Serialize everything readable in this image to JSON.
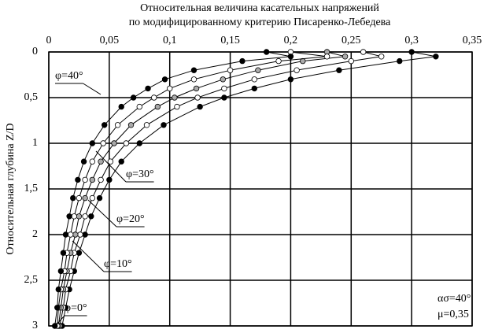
{
  "chart_data": {
    "type": "line",
    "title": [
      "Относительная величина касательных напряжений",
      "по модифицированному критерию Писаренко-Лебедева"
    ],
    "y_label": "Относительная глубина Z/D",
    "y": [
      0,
      0.05,
      0.1,
      0.2,
      0.3,
      0.4,
      0.5,
      0.6,
      0.8,
      1.0,
      1.2,
      1.4,
      1.6,
      1.8,
      2.0,
      2.2,
      2.4,
      2.6,
      2.8,
      3.0
    ],
    "series": [
      {
        "name": "φ=0°",
        "color": "#000000",
        "values": [
          0.3,
          0.32,
          0.29,
          0.24,
          0.2,
          0.17,
          0.145,
          0.125,
          0.095,
          0.075,
          0.06,
          0.05,
          0.042,
          0.035,
          0.03,
          0.025,
          0.021,
          0.017,
          0.014,
          0.011
        ]
      },
      {
        "name": "φ=10°",
        "color": "#ffffff",
        "values": [
          0.26,
          0.275,
          0.25,
          0.205,
          0.17,
          0.145,
          0.123,
          0.106,
          0.081,
          0.064,
          0.051,
          0.043,
          0.036,
          0.03,
          0.026,
          0.021,
          0.018,
          0.014,
          0.012,
          0.009
        ]
      },
      {
        "name": "φ=20°",
        "color": "#aaaaaa",
        "values": [
          0.23,
          0.245,
          0.21,
          0.173,
          0.144,
          0.122,
          0.104,
          0.09,
          0.068,
          0.054,
          0.043,
          0.036,
          0.03,
          0.025,
          0.022,
          0.018,
          0.015,
          0.012,
          0.01,
          0.008
        ]
      },
      {
        "name": "φ=30°",
        "color": "#ffffff",
        "values": [
          0.2,
          0.23,
          0.19,
          0.15,
          0.12,
          0.1,
          0.087,
          0.075,
          0.057,
          0.045,
          0.036,
          0.03,
          0.025,
          0.021,
          0.018,
          0.015,
          0.013,
          0.01,
          0.008,
          0.007
        ]
      },
      {
        "name": "φ=40°",
        "color": "#000000",
        "values": [
          0.18,
          0.2,
          0.16,
          0.12,
          0.096,
          0.082,
          0.07,
          0.06,
          0.046,
          0.036,
          0.029,
          0.024,
          0.02,
          0.017,
          0.014,
          0.012,
          0.01,
          0.008,
          0.007,
          0.005
        ]
      }
    ],
    "xlim": [
      0,
      0.35
    ],
    "xticks": [
      0,
      {
        "value": 0.05,
        "label": "0,05"
      },
      {
        "value": 0.1,
        "label": "0,1"
      },
      {
        "value": 0.15,
        "label": "0,15"
      },
      {
        "value": 0.2,
        "label": "0,2"
      },
      {
        "value": 0.25,
        "label": "0,25"
      },
      {
        "value": 0.3,
        "label": "0,3"
      },
      {
        "value": 0.35,
        "label": "0,35"
      }
    ],
    "ylim": [
      0,
      3
    ],
    "yticks": [
      0,
      {
        "value": 0.5,
        "label": "0,5"
      },
      1,
      {
        "value": 1.5,
        "label": "1,5"
      },
      2,
      {
        "value": 2.5,
        "label": "2,5"
      },
      3
    ],
    "y_inverted": true,
    "grid": true,
    "annotations": [
      "ασ=40°",
      "μ=0,35"
    ]
  }
}
